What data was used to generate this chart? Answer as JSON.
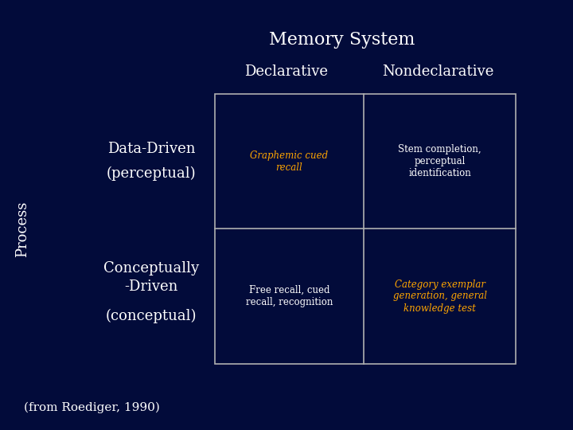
{
  "title": "Memory System",
  "col_headers": [
    "Declarative",
    "Nondeclarative"
  ],
  "process_label": "Process",
  "cells": [
    [
      "Graphemic cued\nrecall",
      "Stem completion,\nperceptual\nidentification"
    ],
    [
      "Free recall, cued\nrecall, recognition",
      "Category exemplar\ngeneration, general\nknowledge test"
    ]
  ],
  "cell_italic": [
    [
      true,
      false
    ],
    [
      false,
      true
    ]
  ],
  "cell_colors": [
    [
      "#ffa500",
      "#ffffff"
    ],
    [
      "#ffffff",
      "#ffa500"
    ]
  ],
  "bg_color": "#020b3a",
  "title_color": "#ffffff",
  "col_header_color": "#ffffff",
  "row_header_color": "#ffffff",
  "grid_color": "#b0b0b0",
  "citation": "(from Roediger, 1990)",
  "row_header_top_line1": "Data-Driven",
  "row_header_top_line2": "(perceptual)",
  "row_header_bot_line1": "Conceptually",
  "row_header_bot_line2": "-Driven",
  "row_header_bot_line3": "(conceptual)"
}
